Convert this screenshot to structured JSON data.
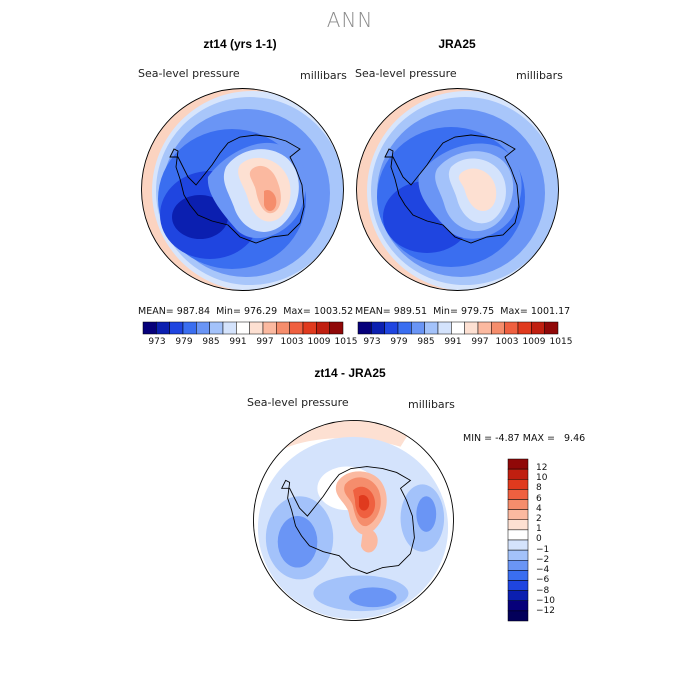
{
  "season": "ANN",
  "panels": [
    {
      "title": "zt14 (yrs 1-1)",
      "variable": "Sea-level pressure",
      "units": "millibars",
      "mean": "987.84",
      "min": "976.29",
      "max": "1003.52"
    },
    {
      "title": "JRA25",
      "variable": "Sea-level pressure",
      "units": "millibars",
      "mean": "989.51",
      "min": "979.75",
      "max": "1001.17"
    }
  ],
  "diff": {
    "title": "zt14 - JRA25",
    "variable": "Sea-level pressure",
    "units": "millibars",
    "min": "-4.87",
    "max": "9.46"
  },
  "labels": {
    "mean": "MEAN=",
    "min": "Min=",
    "max": "Max=",
    "MIN": "MIN =",
    "MAX": "MAX ="
  },
  "colorbar_top": {
    "ticks": [
      "973",
      "979",
      "985",
      "991",
      "997",
      "1003",
      "1009",
      "1015"
    ],
    "colors": [
      "#06007a",
      "#0b1fb0",
      "#1f45e0",
      "#3a6ef0",
      "#6a95f5",
      "#a3c2fa",
      "#d4e3fc",
      "#ffffff",
      "#fde0d2",
      "#fbb9a0",
      "#f58d6c",
      "#ef6040",
      "#e03a1e",
      "#c01f10",
      "#900808"
    ]
  },
  "colorbar_diff": {
    "ticks": [
      "12",
      "10",
      "8",
      "6",
      "4",
      "2",
      "1",
      "0",
      "−1",
      "−2",
      "−4",
      "−6",
      "−8",
      "−10",
      "−12"
    ],
    "colors": [
      "#900808",
      "#c01f10",
      "#e03a1e",
      "#ef6040",
      "#f58d6c",
      "#fbb9a0",
      "#fde0d2",
      "#ffffff",
      "#d4e3fc",
      "#a3c2fa",
      "#6a95f5",
      "#3a6ef0",
      "#1f45e0",
      "#0b1fb0",
      "#06007a",
      "#03005a"
    ]
  }
}
